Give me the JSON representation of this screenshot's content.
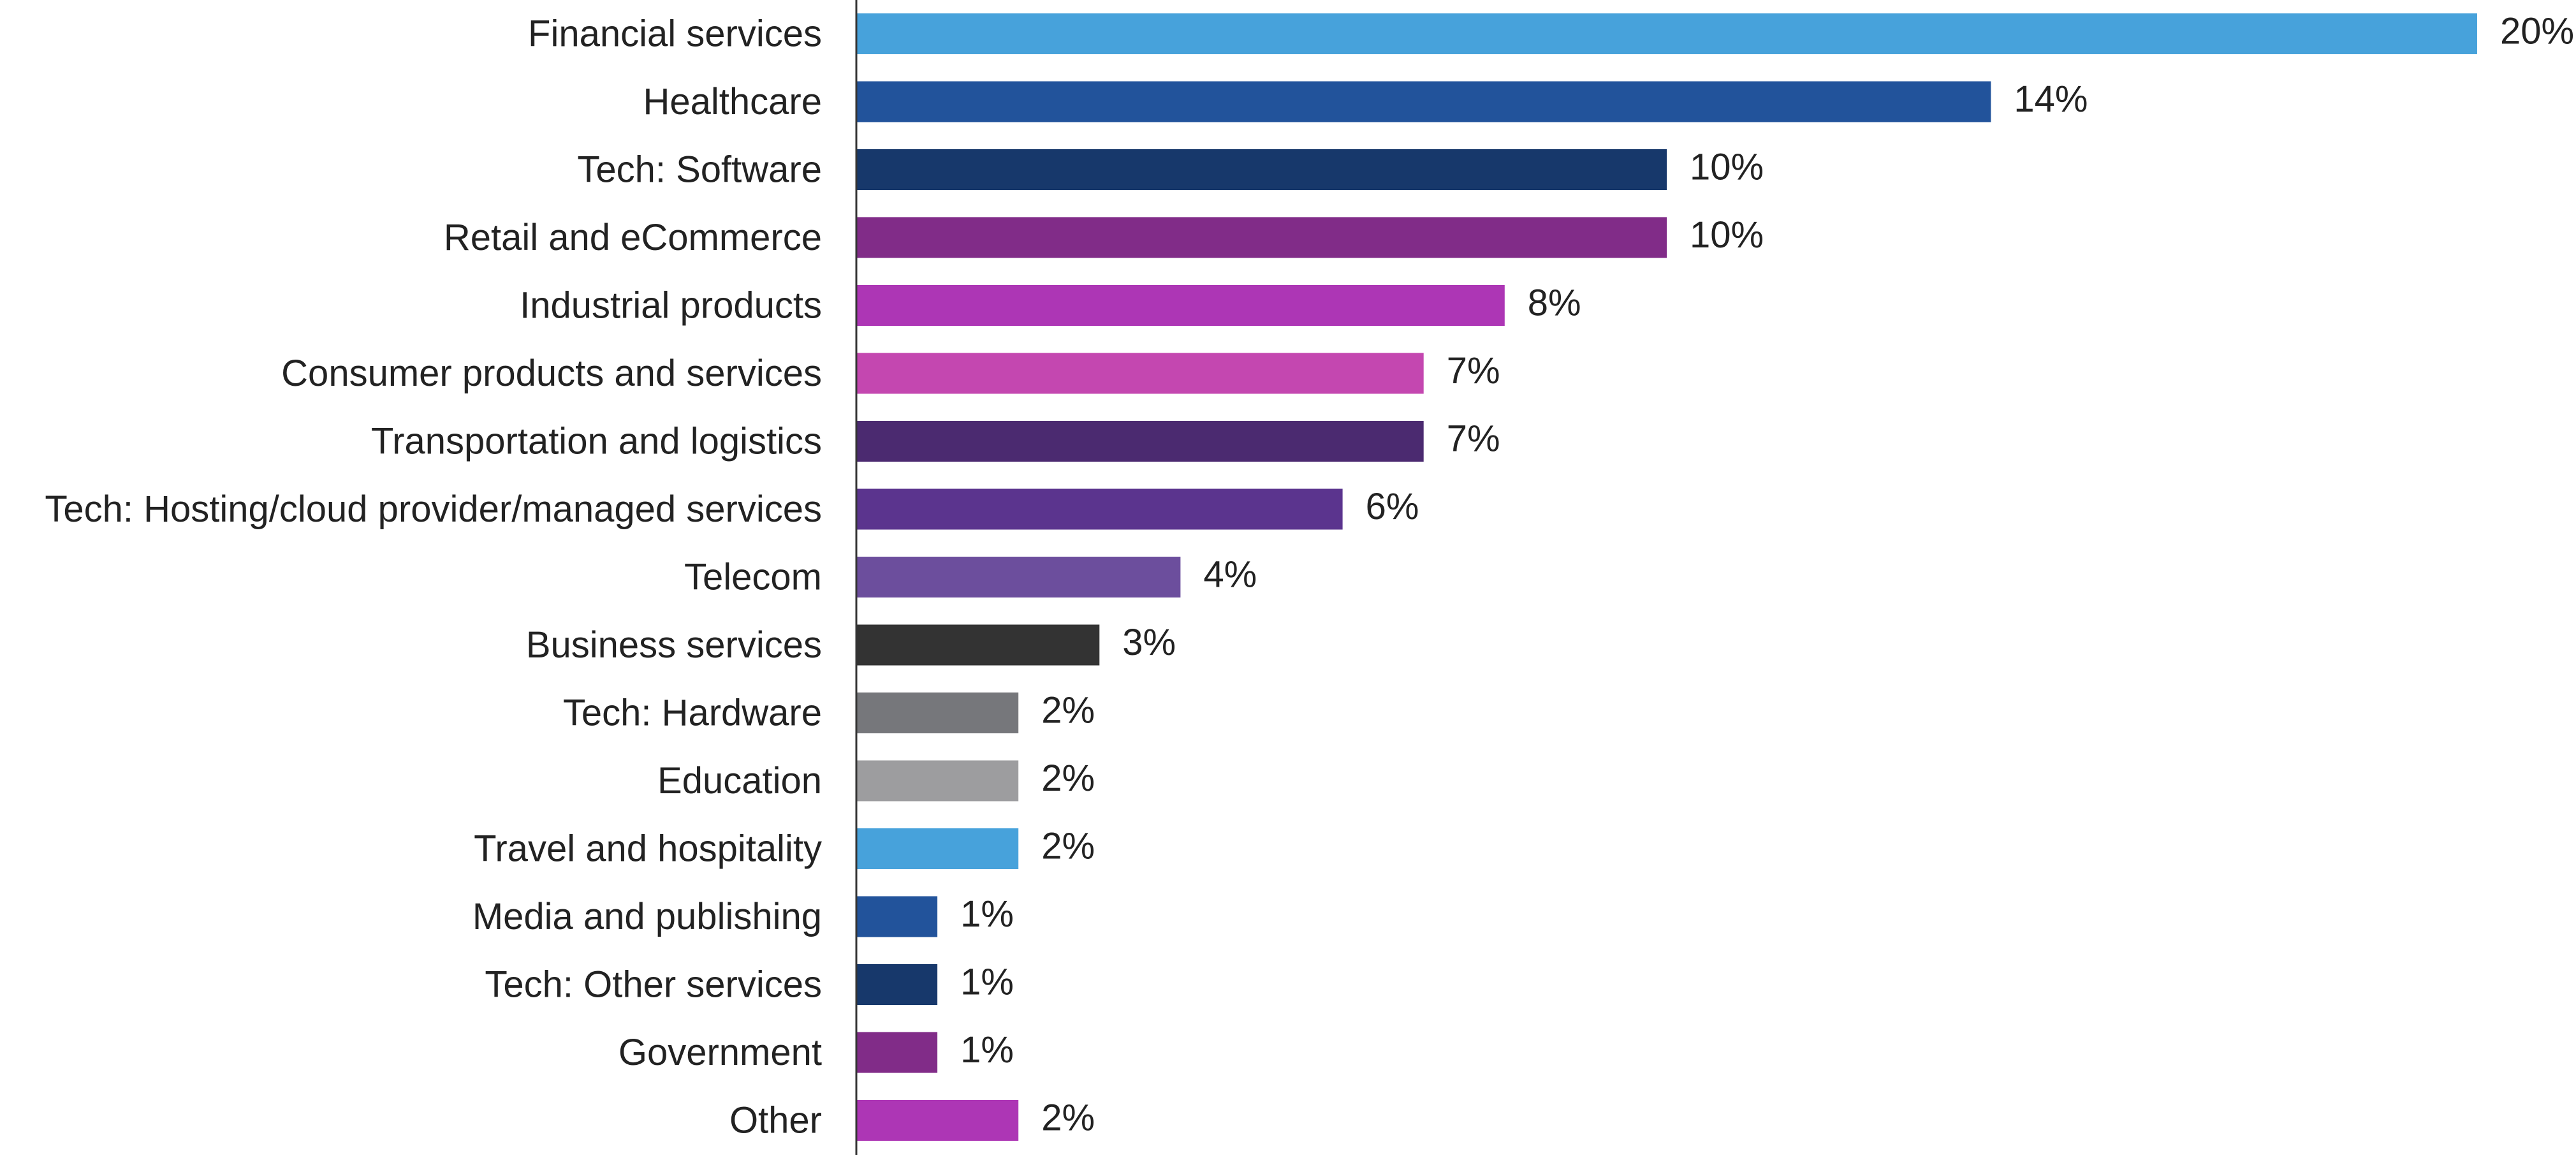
{
  "chart_data": {
    "type": "bar",
    "orientation": "horizontal",
    "categories": [
      "Financial services",
      "Healthcare",
      "Tech: Software",
      "Retail and eCommerce",
      "Industrial products",
      "Consumer products and services",
      "Transportation and logistics",
      "Tech: Hosting/cloud provider/managed services",
      "Telecom",
      "Business services",
      "Tech: Hardware",
      "Education",
      "Travel and hospitality",
      "Media and publishing",
      "Tech: Other services",
      "Government",
      "Other"
    ],
    "values": [
      20,
      14,
      10,
      10,
      8,
      7,
      7,
      6,
      4,
      3,
      2,
      2,
      2,
      1,
      1,
      1,
      2
    ],
    "value_labels": [
      "20%",
      "14%",
      "10%",
      "10%",
      "8%",
      "7%",
      "7%",
      "6%",
      "4%",
      "3%",
      "2%",
      "2%",
      "2%",
      "1%",
      "1%",
      "1%",
      "2%"
    ],
    "colors": [
      "#47a2db",
      "#22539b",
      "#17386b",
      "#812c88",
      "#ad36b5",
      "#c447b0",
      "#4b2a70",
      "#5b348e",
      "#6c4e9d",
      "#333333",
      "#76777b",
      "#9d9d9f",
      "#47a2db",
      "#22539b",
      "#17386b",
      "#812c88",
      "#ad36b5"
    ],
    "unit": "%",
    "xlim": [
      0,
      20
    ],
    "grid": false,
    "title": "",
    "xlabel": "",
    "ylabel": ""
  }
}
